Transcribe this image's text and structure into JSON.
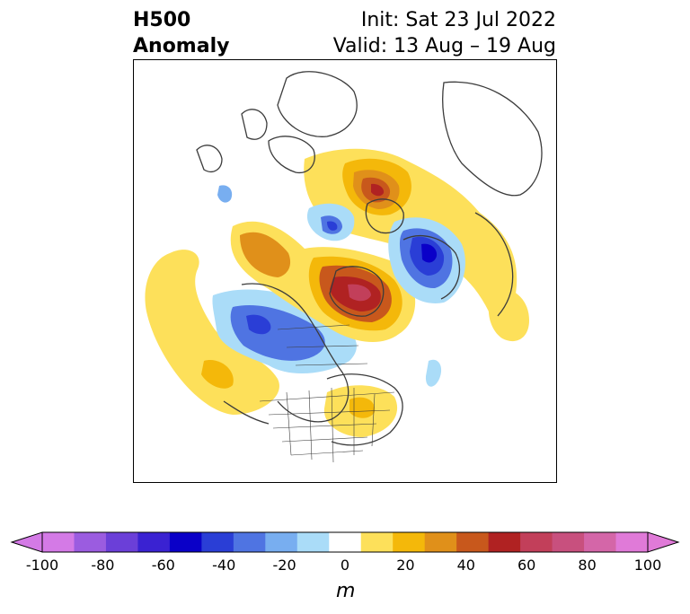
{
  "title": {
    "left_line1": "H500",
    "left_line2": "Anomaly",
    "init": "Init: Sat 23 Jul 2022",
    "valid": "Valid: 13 Aug – 19 Aug"
  },
  "colorbar": {
    "unit": "m",
    "ticks": [
      "-100",
      "-80",
      "-60",
      "-40",
      "-20",
      "0",
      "20",
      "40",
      "60",
      "80",
      "100"
    ],
    "levels": [
      -100,
      -90,
      -80,
      -70,
      -60,
      -50,
      -40,
      -30,
      -20,
      -10,
      10,
      20,
      30,
      40,
      50,
      60,
      70,
      80,
      90,
      100
    ],
    "colors": [
      "#d47ae6",
      "#9b5ce0",
      "#6b3fd8",
      "#3a22d2",
      "#0a00c8",
      "#2a3ed6",
      "#4f74e2",
      "#78aef0",
      "#aadcf8",
      "#ffffff",
      "#fde05a",
      "#f4b80a",
      "#e0901a",
      "#c8581c",
      "#b02222",
      "#c23f5a",
      "#c8507e",
      "#d466a8",
      "#e07ad8"
    ],
    "under_color": "#d47ae6",
    "over_color": "#e07ad8"
  },
  "map": {
    "projection": "north-polar-stereographic",
    "palette": {
      "yellow": "#fde05a",
      "gold": "#f4b80a",
      "orange": "#e0901a",
      "dark_orange": "#c8581c",
      "red": "#b02222",
      "rose": "#c23f5a",
      "pale_blue": "#aadcf8",
      "light_blue": "#78aef0",
      "mid_blue": "#4f74e2",
      "blue": "#2a3ed6",
      "deep_blue": "#0a00c8",
      "coast": "#3c3c3c"
    }
  }
}
